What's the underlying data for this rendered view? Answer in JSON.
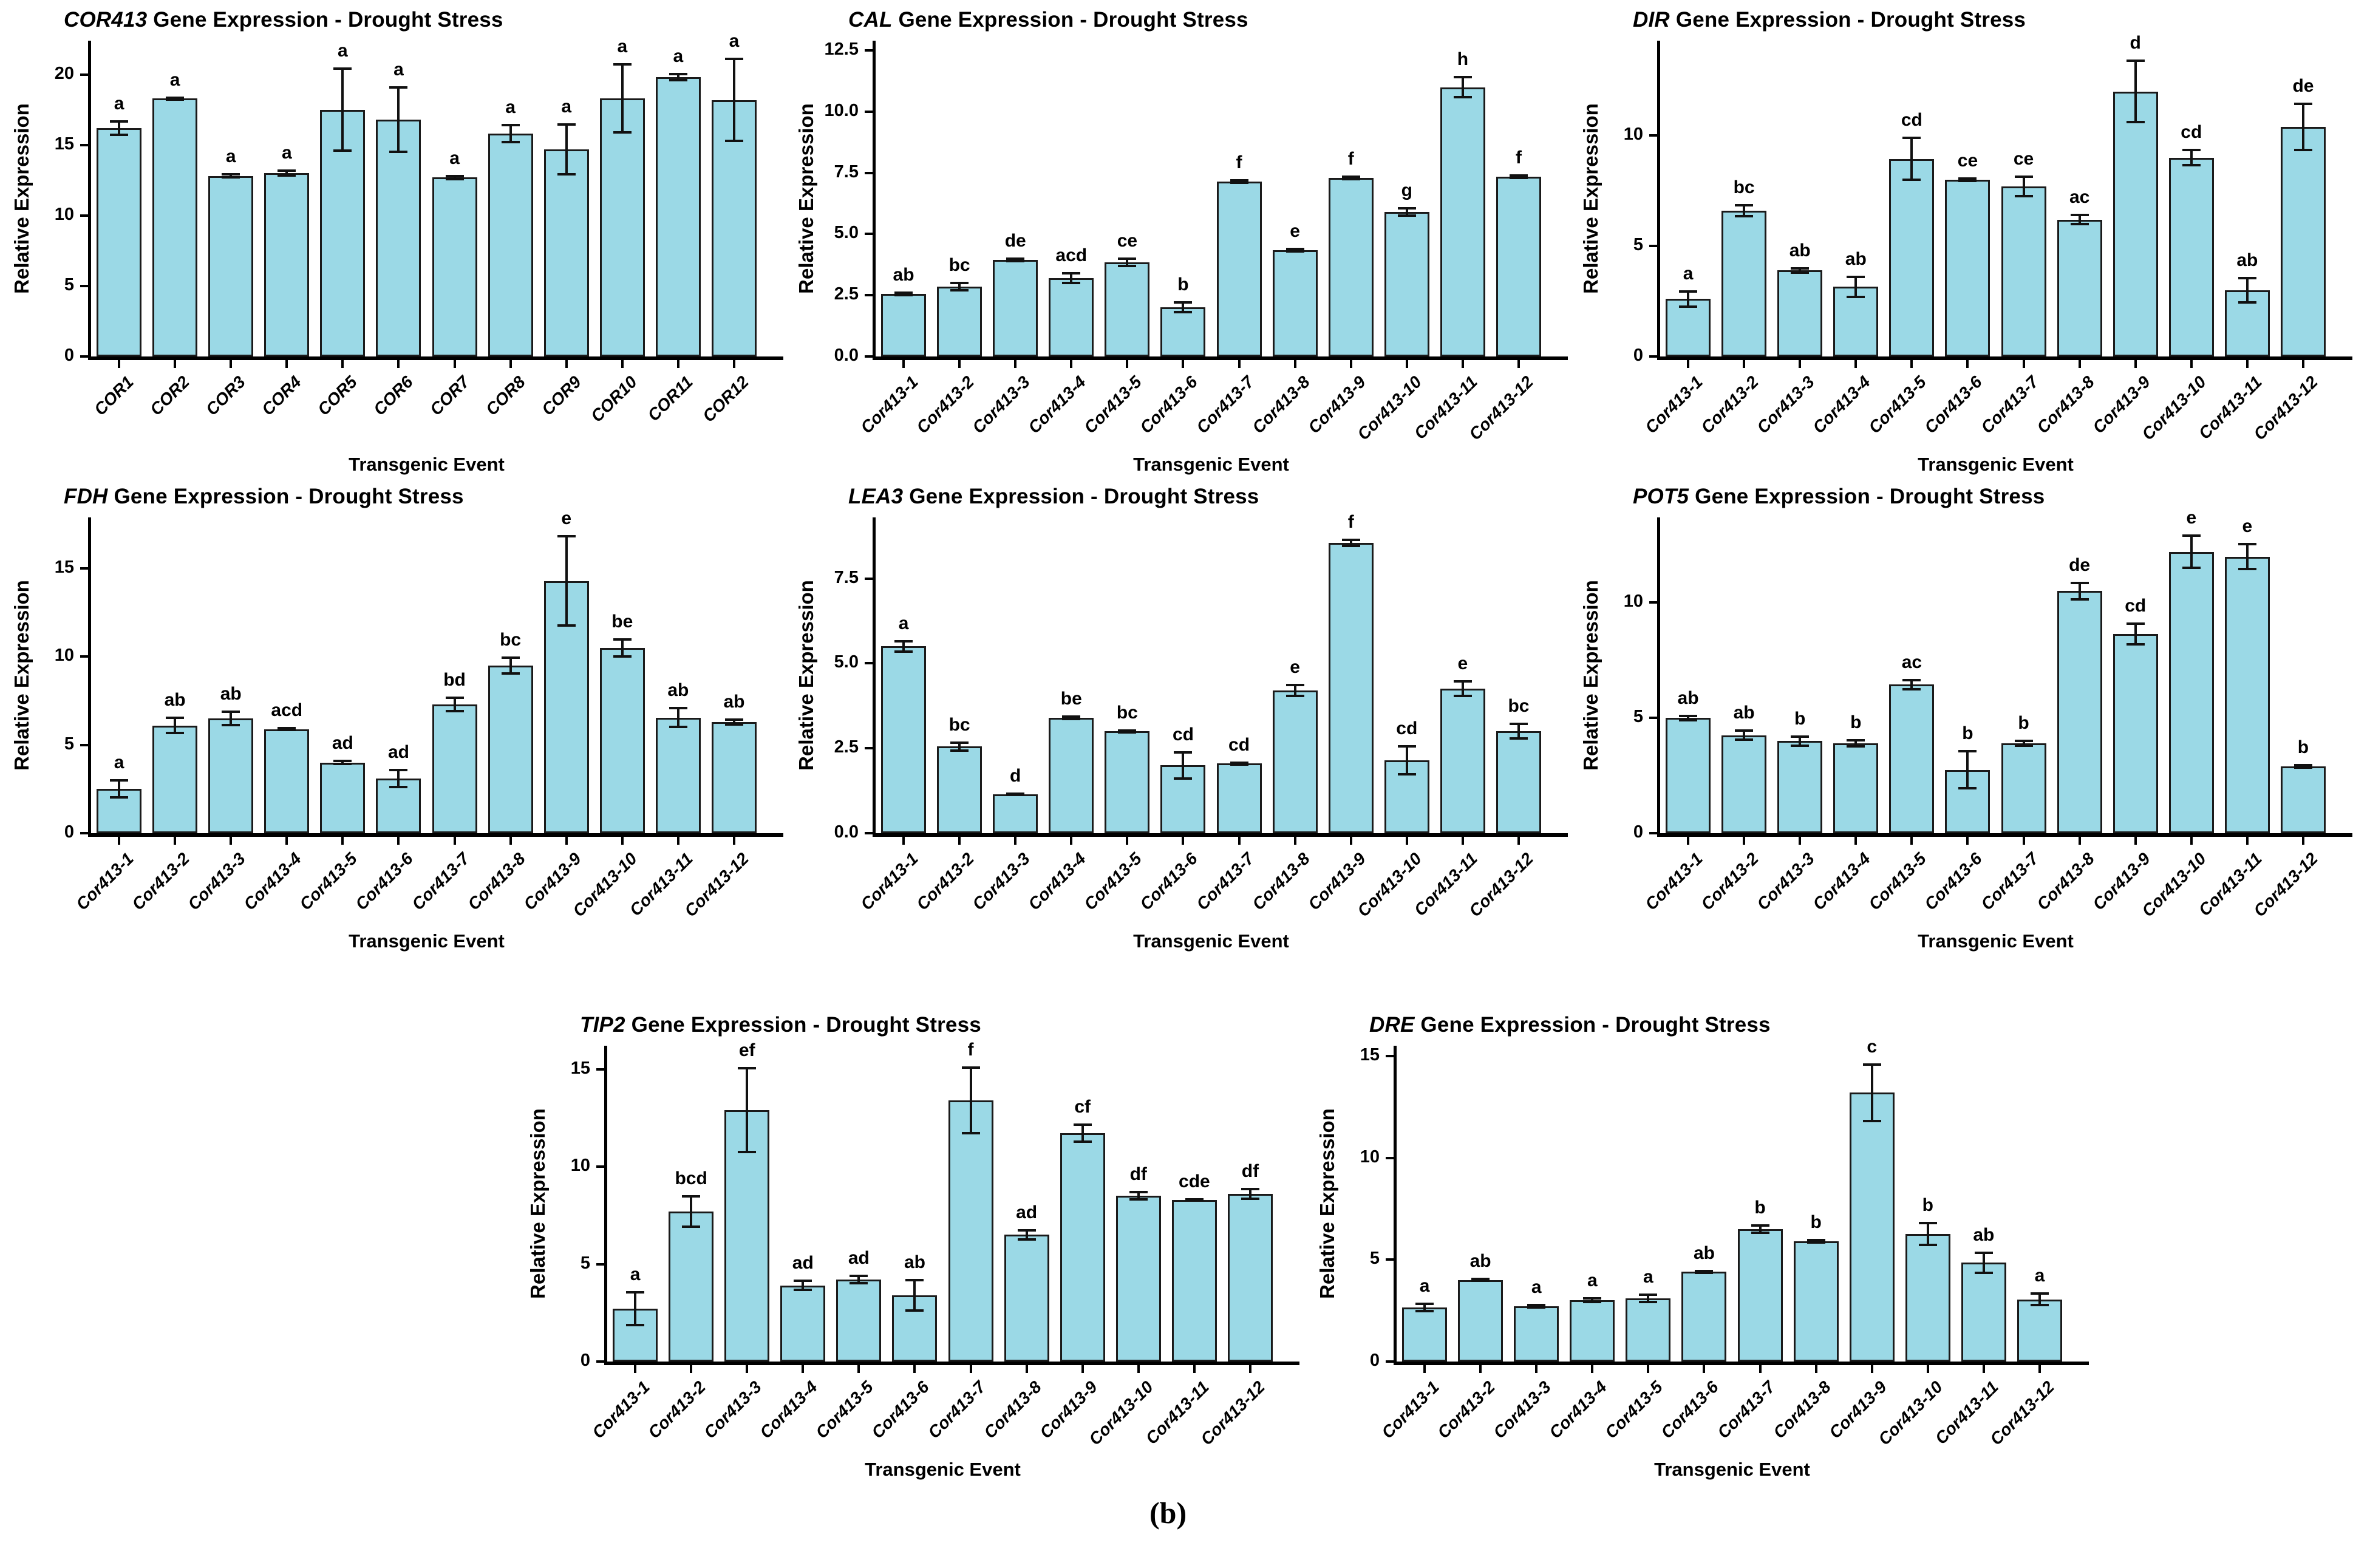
{
  "figure_label": "(b)",
  "colors": {
    "bar_fill": "#9BD9E6",
    "bar_border": "#1A1A1A",
    "axis": "#000000",
    "background": "#FFFFFF"
  },
  "chart_data": [
    {
      "type": "bar",
      "title_gene": "COR413",
      "title_rest": " Gene Expression - Drought Stress",
      "xlabel": "Transgenic Event",
      "ylabel": "Relative Expression",
      "categories": [
        "COR1",
        "COR2",
        "COR3",
        "COR4",
        "COR5",
        "COR6",
        "COR7",
        "COR8",
        "COR9",
        "COR10",
        "COR11",
        "COR12"
      ],
      "values": [
        16.2,
        18.3,
        12.8,
        13.0,
        17.5,
        16.8,
        12.7,
        15.8,
        14.7,
        18.3,
        19.8,
        18.2
      ],
      "errors": [
        0.55,
        0.15,
        0.2,
        0.25,
        3.0,
        2.35,
        0.2,
        0.7,
        1.85,
        2.5,
        0.3,
        3.0
      ],
      "letters": [
        "a",
        "a",
        "a",
        "a",
        "a",
        "a",
        "a",
        "a",
        "a",
        "a",
        "a",
        "a"
      ],
      "yticks": [
        0,
        5,
        10,
        15,
        20
      ],
      "ytick_labels": [
        "0",
        "5",
        "10",
        "15",
        "20"
      ],
      "ylim": [
        0,
        22.4
      ],
      "grid": false,
      "legend": false
    },
    {
      "type": "bar",
      "title_gene": "CAL",
      "title_rest": " Gene Expression - Drought Stress",
      "xlabel": "Transgenic Event",
      "ylabel": "Relative Expression",
      "categories": [
        "Cor413-1",
        "Cor413-2",
        "Cor413-3",
        "Cor413-4",
        "Cor413-5",
        "Cor413-6",
        "Cor413-7",
        "Cor413-8",
        "Cor413-9",
        "Cor413-10",
        "Cor413-11",
        "Cor413-12"
      ],
      "values": [
        2.55,
        2.85,
        3.95,
        3.2,
        3.85,
        2.0,
        7.15,
        4.35,
        7.3,
        5.9,
        11.0,
        7.35
      ],
      "errors": [
        0.1,
        0.2,
        0.1,
        0.25,
        0.2,
        0.25,
        0.1,
        0.1,
        0.1,
        0.2,
        0.45,
        0.1
      ],
      "letters": [
        "ab",
        "bc",
        "de",
        "acd",
        "ce",
        "b",
        "f",
        "e",
        "f",
        "g",
        "h",
        "f"
      ],
      "yticks": [
        0,
        2.5,
        5,
        7.5,
        10,
        12.5
      ],
      "ytick_labels": [
        "0.0",
        "2.5",
        "5.0",
        "7.5",
        "10.0",
        "12.5"
      ],
      "ylim": [
        0,
        12.9
      ],
      "grid": false,
      "legend": false
    },
    {
      "type": "bar",
      "title_gene": "DIR",
      "title_rest": " Gene Expression - Drought Stress",
      "xlabel": "Transgenic Event",
      "ylabel": "Relative Expression",
      "categories": [
        "Cor413-1",
        "Cor413-2",
        "Cor413-3",
        "Cor413-4",
        "Cor413-5",
        "Cor413-6",
        "Cor413-7",
        "Cor413-8",
        "Cor413-9",
        "Cor413-10",
        "Cor413-11",
        "Cor413-12"
      ],
      "values": [
        2.6,
        6.6,
        3.9,
        3.15,
        8.95,
        8.0,
        7.7,
        6.2,
        12.0,
        9.0,
        3.0,
        10.4
      ],
      "errors": [
        0.4,
        0.3,
        0.15,
        0.5,
        1.0,
        0.12,
        0.5,
        0.25,
        1.45,
        0.4,
        0.6,
        1.1
      ],
      "letters": [
        "a",
        "bc",
        "ab",
        "ab",
        "cd",
        "ce",
        "ce",
        "ac",
        "d",
        "cd",
        "ab",
        "de"
      ],
      "yticks": [
        0,
        5,
        10
      ],
      "ytick_labels": [
        "0",
        "5",
        "10"
      ],
      "ylim": [
        0,
        14.3
      ],
      "grid": false,
      "legend": false
    },
    {
      "type": "bar",
      "title_gene": "FDH",
      "title_rest": " Gene Expression - Drought Stress",
      "xlabel": "Transgenic Event",
      "ylabel": "Relative Expression",
      "categories": [
        "Cor413-1",
        "Cor413-2",
        "Cor413-3",
        "Cor413-4",
        "Cor413-5",
        "Cor413-6",
        "Cor413-7",
        "Cor413-8",
        "Cor413-9",
        "Cor413-10",
        "Cor413-11",
        "Cor413-12"
      ],
      "values": [
        2.5,
        6.1,
        6.5,
        5.9,
        4.0,
        3.1,
        7.3,
        9.5,
        14.3,
        10.5,
        6.55,
        6.3
      ],
      "errors": [
        0.55,
        0.5,
        0.45,
        0.12,
        0.15,
        0.55,
        0.45,
        0.5,
        2.6,
        0.55,
        0.6,
        0.2
      ],
      "letters": [
        "a",
        "ab",
        "ab",
        "acd",
        "ad",
        "ad",
        "bd",
        "bc",
        "e",
        "be",
        "ab",
        "ab"
      ],
      "yticks": [
        0,
        5,
        10,
        15
      ],
      "ytick_labels": [
        "0",
        "5",
        "10",
        "15"
      ],
      "ylim": [
        0,
        17.9
      ],
      "grid": false,
      "legend": false
    },
    {
      "type": "bar",
      "title_gene": "LEA3",
      "title_rest": " Gene Expression - Drought Stress",
      "xlabel": "Transgenic Event",
      "ylabel": "Relative Expression",
      "categories": [
        "Cor413-1",
        "Cor413-2",
        "Cor413-3",
        "Cor413-4",
        "Cor413-5",
        "Cor413-6",
        "Cor413-7",
        "Cor413-8",
        "Cor413-9",
        "Cor413-10",
        "Cor413-11",
        "Cor413-12"
      ],
      "values": [
        5.5,
        2.55,
        1.15,
        3.4,
        3.0,
        2.0,
        2.05,
        4.2,
        8.55,
        2.15,
        4.25,
        3.0
      ],
      "errors": [
        0.18,
        0.15,
        0.05,
        0.07,
        0.06,
        0.42,
        0.06,
        0.2,
        0.12,
        0.45,
        0.25,
        0.25
      ],
      "letters": [
        "a",
        "bc",
        "d",
        "be",
        "bc",
        "cd",
        "cd",
        "e",
        "f",
        "cd",
        "e",
        "bc"
      ],
      "yticks": [
        0,
        2.5,
        5,
        7.5
      ],
      "ytick_labels": [
        "0.0",
        "2.5",
        "5.0",
        "7.5"
      ],
      "ylim": [
        0,
        9.3
      ],
      "grid": false,
      "legend": false
    },
    {
      "type": "bar",
      "title_gene": "POT5",
      "title_rest": " Gene Expression - Drought Stress",
      "xlabel": "Transgenic Event",
      "ylabel": "Relative Expression",
      "categories": [
        "Cor413-1",
        "Cor413-2",
        "Cor413-3",
        "Cor413-4",
        "Cor413-5",
        "Cor413-6",
        "Cor413-7",
        "Cor413-8",
        "Cor413-9",
        "Cor413-10",
        "Cor413-11",
        "Cor413-12"
      ],
      "values": [
        5.0,
        4.25,
        4.0,
        3.9,
        6.45,
        2.75,
        3.9,
        10.5,
        8.65,
        12.2,
        12.0,
        2.9
      ],
      "errors": [
        0.15,
        0.25,
        0.25,
        0.18,
        0.25,
        0.85,
        0.15,
        0.4,
        0.5,
        0.75,
        0.6,
        0.1
      ],
      "letters": [
        "ab",
        "ab",
        "b",
        "b",
        "ac",
        "b",
        "b",
        "de",
        "cd",
        "e",
        "e",
        "b"
      ],
      "yticks": [
        0,
        5,
        10
      ],
      "ytick_labels": [
        "0",
        "5",
        "10"
      ],
      "ylim": [
        0,
        13.7
      ],
      "grid": false,
      "legend": false
    },
    {
      "type": "bar",
      "title_gene": "TIP2",
      "title_rest": " Gene Expression - Drought Stress",
      "xlabel": "Transgenic Event",
      "ylabel": "Relative Expression",
      "categories": [
        "Cor413-1",
        "Cor413-2",
        "Cor413-3",
        "Cor413-4",
        "Cor413-5",
        "Cor413-6",
        "Cor413-7",
        "Cor413-8",
        "Cor413-9",
        "Cor413-10",
        "Cor413-11",
        "Cor413-12"
      ],
      "values": [
        2.7,
        7.7,
        12.9,
        3.9,
        4.2,
        3.4,
        13.4,
        6.5,
        11.7,
        8.5,
        8.3,
        8.6
      ],
      "errors": [
        0.9,
        0.85,
        2.2,
        0.3,
        0.25,
        0.85,
        1.75,
        0.3,
        0.5,
        0.25,
        0.08,
        0.3
      ],
      "letters": [
        "a",
        "bcd",
        "ef",
        "ad",
        "ad",
        "ab",
        "f",
        "ad",
        "cf",
        "df",
        "cde",
        "df"
      ],
      "yticks": [
        0,
        5,
        10,
        15
      ],
      "ytick_labels": [
        "0",
        "5",
        "10",
        "15"
      ],
      "ylim": [
        0,
        16.2
      ],
      "grid": false,
      "legend": false
    },
    {
      "type": "bar",
      "title_gene": "DRE",
      "title_rest": " Gene Expression - Drought Stress",
      "xlabel": "Transgenic Event",
      "ylabel": "Relative Expression",
      "categories": [
        "Cor413-1",
        "Cor413-2",
        "Cor413-3",
        "Cor413-4",
        "Cor413-5",
        "Cor413-6",
        "Cor413-7",
        "Cor413-8",
        "Cor413-9",
        "Cor413-10",
        "Cor413-11",
        "Cor413-12"
      ],
      "values": [
        2.65,
        4.0,
        2.7,
        3.0,
        3.1,
        4.4,
        6.5,
        5.9,
        13.2,
        6.25,
        4.85,
        3.05
      ],
      "errors": [
        0.25,
        0.1,
        0.12,
        0.15,
        0.25,
        0.1,
        0.25,
        0.12,
        1.45,
        0.6,
        0.55,
        0.35
      ],
      "letters": [
        "a",
        "ab",
        "a",
        "a",
        "a",
        "ab",
        "b",
        "b",
        "c",
        "b",
        "ab",
        "a"
      ],
      "yticks": [
        0,
        5,
        10,
        15
      ],
      "ytick_labels": [
        "0",
        "5",
        "10",
        "15"
      ],
      "ylim": [
        0,
        15.5
      ],
      "grid": false,
      "legend": false
    }
  ]
}
